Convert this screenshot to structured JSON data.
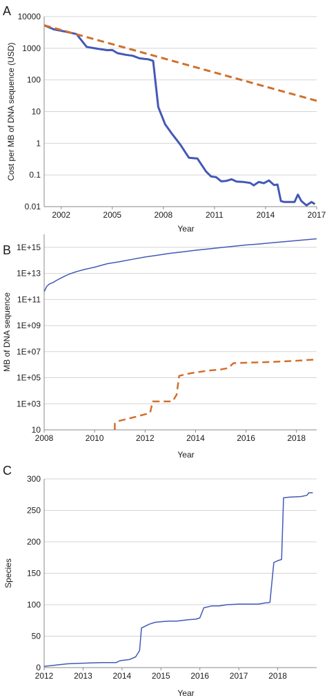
{
  "colors": {
    "blue": "#4358b6",
    "orange": "#d16f2c",
    "grid": "#d4d4d4"
  },
  "chart_data": [
    {
      "panel": "A",
      "type": "line",
      "xlabel": "Year",
      "ylabel": "Cost per MB of DNA sequence (USD)",
      "yscale": "log",
      "xlim": [
        2001,
        2017
      ],
      "ylim": [
        0.01,
        10000
      ],
      "xticks": [
        2002,
        2005,
        2008,
        2011,
        2014,
        2017
      ],
      "xtick_labels": [
        "2002",
        "2005",
        "2008",
        "2011",
        "2014",
        "2017"
      ],
      "yticks": [
        0.01,
        0.1,
        1,
        10,
        100,
        1000,
        10000
      ],
      "ytick_labels": [
        "0.01",
        "0.1",
        "1",
        "10",
        "100",
        "1000",
        "10000"
      ],
      "series": [
        {
          "color": "#4358b6",
          "style": "solid",
          "width": 3,
          "x": [
            2001.0,
            2001.6,
            2002.2,
            2002.9,
            2003.5,
            2004.1,
            2004.7,
            2005.0,
            2005.3,
            2005.8,
            2006.2,
            2006.6,
            2006.9,
            2007.1,
            2007.4,
            2007.7,
            2008.1,
            2008.5,
            2009.0,
            2009.5,
            2010.0,
            2010.5,
            2010.8,
            2011.1,
            2011.4,
            2011.7,
            2012.0,
            2012.3,
            2012.7,
            2013.1,
            2013.3,
            2013.6,
            2013.9,
            2014.2,
            2014.5,
            2014.7,
            2014.9,
            2015.1,
            2015.4,
            2015.7,
            2015.9,
            2016.1,
            2016.4,
            2016.7,
            2016.9
          ],
          "y": [
            5300,
            3900,
            3400,
            2800,
            1100,
            970,
            870,
            880,
            700,
            620,
            580,
            480,
            460,
            450,
            400,
            14,
            4,
            2,
            0.9,
            0.35,
            0.33,
            0.13,
            0.09,
            0.085,
            0.063,
            0.065,
            0.073,
            0.062,
            0.06,
            0.056,
            0.047,
            0.06,
            0.055,
            0.067,
            0.048,
            0.05,
            0.015,
            0.014,
            0.014,
            0.014,
            0.024,
            0.015,
            0.011,
            0.014,
            0.012
          ]
        },
        {
          "color": "#d16f2c",
          "style": "dashed",
          "width": 3,
          "x": [
            2001.0,
            2017.0
          ],
          "y": [
            5300,
            22
          ]
        }
      ]
    },
    {
      "panel": "B",
      "type": "line",
      "xlabel": "Year",
      "ylabel": "MB of DNA sequence",
      "yscale": "log",
      "xlim": [
        2008,
        2018.8
      ],
      "ylim": [
        10,
        10000000000000000
      ],
      "xticks": [
        2008,
        2010,
        2012,
        2014,
        2016,
        2018
      ],
      "xtick_labels": [
        "2008",
        "2010",
        "2012",
        "2014",
        "2016",
        "2018"
      ],
      "yticks": [
        10,
        1000,
        100000,
        10000000,
        1000000000,
        100000000000,
        10000000000000,
        1000000000000000
      ],
      "ytick_labels": [
        "10",
        "1E+03",
        "1E+05",
        "1E+07",
        "1E+09",
        "1E+11",
        "1E+13",
        "1E+15"
      ],
      "series": [
        {
          "color": "#4358b6",
          "style": "solid",
          "width": 1.5,
          "x": [
            2008.0,
            2008.1,
            2008.2,
            2008.35,
            2008.5,
            2008.8,
            2009.0,
            2009.3,
            2009.6,
            2010.0,
            2010.5,
            2011.0,
            2011.5,
            2012.0,
            2012.5,
            2013.0,
            2013.5,
            2014.0,
            2014.5,
            2015.0,
            2015.5,
            2016.0,
            2016.5,
            2017.0,
            2017.5,
            2018.0,
            2018.5,
            2018.8
          ],
          "y": [
            400000000000,
            1000000000000,
            1500000000000,
            2000000000000,
            3000000000000,
            6000000000000,
            9000000000000,
            14000000000000,
            20000000000000,
            30000000000000,
            55000000000000,
            80000000000000,
            120000000000000,
            180000000000000,
            250000000000000,
            350000000000000,
            450000000000000,
            600000000000000,
            750000000000000,
            950000000000000,
            1200000000000000,
            1500000000000000,
            1800000000000000,
            2200000000000000,
            2700000000000000,
            3300000000000000,
            4000000000000000,
            4500000000000000
          ]
        },
        {
          "color": "#d16f2c",
          "style": "dashed",
          "width": 2.5,
          "x": [
            2010.8,
            2010.8,
            2010.9,
            2011.3,
            2011.7,
            2012.2,
            2012.3,
            2013.0,
            2013.1,
            2013.25,
            2013.35,
            2013.8,
            2014.5,
            2015.0,
            2015.3,
            2015.5,
            2016.0,
            2016.5,
            2017.0,
            2017.5,
            2018.0,
            2018.5,
            2018.8
          ],
          "y": [
            10,
            30,
            45,
            70,
            110,
            200,
            1500,
            1500,
            1600,
            5000,
            140000,
            220000,
            350000,
            430000,
            550000,
            1300000,
            1400000,
            1500000,
            1600000,
            1800000,
            2000000,
            2300000,
            2500000
          ]
        }
      ]
    },
    {
      "panel": "C",
      "type": "line",
      "xlabel": "Year",
      "ylabel": "Species",
      "xlim": [
        2012,
        2019
      ],
      "ylim": [
        0,
        300
      ],
      "xticks": [
        2012,
        2013,
        2014,
        2015,
        2016,
        2017,
        2018
      ],
      "xtick_labels": [
        "2012",
        "2013",
        "2014",
        "2015",
        "2016",
        "2017",
        "2018"
      ],
      "yticks": [
        0,
        50,
        100,
        150,
        200,
        250,
        300
      ],
      "ytick_labels": [
        "0",
        "50",
        "100",
        "150",
        "200",
        "250",
        "300"
      ],
      "series": [
        {
          "color": "#4358b6",
          "style": "solid",
          "width": 1.5,
          "x": [
            2012.0,
            2012.3,
            2012.6,
            2013.0,
            2013.5,
            2013.85,
            2013.95,
            2014.2,
            2014.35,
            2014.45,
            2014.5,
            2014.6,
            2014.7,
            2014.85,
            2015.0,
            2015.2,
            2015.4,
            2015.55,
            2015.7,
            2015.9,
            2016.0,
            2016.1,
            2016.3,
            2016.5,
            2016.7,
            2017.0,
            2017.3,
            2017.5,
            2017.7,
            2017.75,
            2017.8,
            2017.9,
            2018.0,
            2018.1,
            2018.15,
            2018.3,
            2018.6,
            2018.75,
            2018.8,
            2018.9
          ],
          "y": [
            2,
            4,
            6,
            7,
            8,
            8,
            11,
            13,
            17,
            27,
            63,
            66,
            69,
            72,
            73,
            74,
            74,
            75,
            76,
            77,
            79,
            95,
            98,
            98,
            100,
            101,
            101,
            101,
            103,
            103,
            104,
            167,
            170,
            172,
            270,
            271,
            272,
            274,
            278,
            278
          ]
        }
      ]
    }
  ]
}
